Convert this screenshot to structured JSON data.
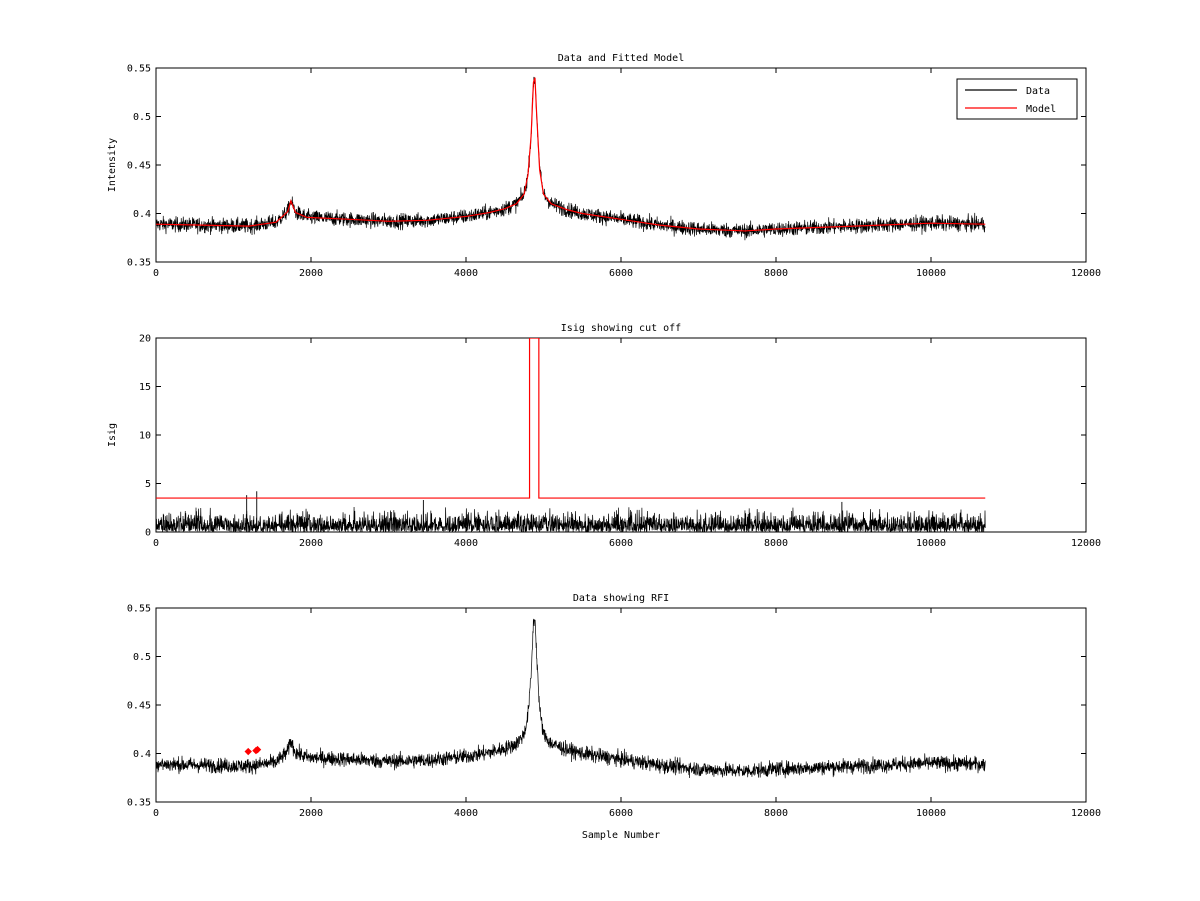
{
  "figure": {
    "background": "#ffffff"
  },
  "chart_data": [
    {
      "type": "line",
      "title": "Data and Fitted Model",
      "xlabel": "",
      "ylabel": "Intensity",
      "xlim": [
        0,
        12000
      ],
      "ylim": [
        0.35,
        0.55
      ],
      "xticks": [
        0,
        2000,
        4000,
        6000,
        8000,
        10000,
        12000
      ],
      "xtick_labels": [
        "0",
        "2000",
        "4000",
        "6000",
        "8000",
        "10000",
        "12000"
      ],
      "yticks": [
        0.35,
        0.4,
        0.45,
        0.5,
        0.55
      ],
      "ytick_labels": [
        "0.35",
        "0.4",
        "0.45",
        "0.5",
        "0.55"
      ],
      "grid": false,
      "legend": {
        "position": "top-right",
        "entries": [
          {
            "label": "Data",
            "color": "#000000"
          },
          {
            "label": "Model",
            "color": "#ff0000"
          }
        ]
      },
      "series": [
        {
          "name": "Data",
          "color": "#000000",
          "style": "noisy",
          "noise": 0.0055,
          "x": [
            0,
            600,
            1200,
            1550,
            1700,
            1740,
            1800,
            1950,
            2500,
            3000,
            3500,
            4000,
            4300,
            4500,
            4650,
            4750,
            4800,
            4840,
            4870,
            4890,
            4910,
            4950,
            5000,
            5100,
            5300,
            5500,
            6000,
            6500,
            7000,
            7600,
            8000,
            9000,
            10000,
            10700
          ],
          "y": [
            0.389,
            0.388,
            0.387,
            0.391,
            0.402,
            0.413,
            0.401,
            0.396,
            0.394,
            0.392,
            0.393,
            0.397,
            0.401,
            0.405,
            0.41,
            0.42,
            0.44,
            0.48,
            0.535,
            0.54,
            0.505,
            0.445,
            0.42,
            0.41,
            0.404,
            0.4,
            0.394,
            0.388,
            0.384,
            0.382,
            0.384,
            0.387,
            0.39,
            0.389
          ]
        },
        {
          "name": "Model",
          "color": "#ff0000",
          "style": "line",
          "x": [
            0,
            600,
            1200,
            1550,
            1700,
            1740,
            1800,
            1950,
            2500,
            3000,
            3500,
            4000,
            4300,
            4500,
            4650,
            4750,
            4800,
            4840,
            4870,
            4890,
            4910,
            4950,
            5000,
            5100,
            5300,
            5500,
            6000,
            6500,
            7000,
            7600,
            8000,
            9000,
            10000,
            10700
          ],
          "y": [
            0.389,
            0.388,
            0.387,
            0.391,
            0.402,
            0.413,
            0.401,
            0.396,
            0.394,
            0.392,
            0.393,
            0.397,
            0.401,
            0.405,
            0.41,
            0.42,
            0.44,
            0.48,
            0.535,
            0.54,
            0.505,
            0.445,
            0.42,
            0.41,
            0.404,
            0.4,
            0.394,
            0.388,
            0.384,
            0.382,
            0.384,
            0.387,
            0.39,
            0.389
          ]
        }
      ]
    },
    {
      "type": "line",
      "title": "Isig showing cut off",
      "xlabel": "",
      "ylabel": "Isig",
      "xlim": [
        0,
        12000
      ],
      "ylim": [
        0,
        20
      ],
      "xticks": [
        0,
        2000,
        4000,
        6000,
        8000,
        10000,
        12000
      ],
      "xtick_labels": [
        "0",
        "2000",
        "4000",
        "6000",
        "8000",
        "10000",
        "12000"
      ],
      "yticks": [
        0,
        5,
        10,
        15,
        20
      ],
      "ytick_labels": [
        "0",
        "5",
        "10",
        "15",
        "20"
      ],
      "grid": false,
      "series": [
        {
          "color": "#000000",
          "style": "spiky",
          "x": [
            0,
            10700
          ],
          "ymax": 4.2,
          "spikes": [
            {
              "x": 1300,
              "y": 4.2
            },
            {
              "x": 1170,
              "y": 3.8
            },
            {
              "x": 3450,
              "y": 3.3
            },
            {
              "x": 8850,
              "y": 3.1
            }
          ]
        },
        {
          "color": "#ff0000",
          "style": "line",
          "x": [
            0,
            4820,
            4820,
            4940,
            4940,
            10700
          ],
          "y": [
            3.5,
            3.5,
            20,
            20,
            3.5,
            3.5
          ]
        }
      ]
    },
    {
      "type": "line",
      "title": "Data showing RFI",
      "xlabel": "Sample Number",
      "ylabel": "",
      "xlim": [
        0,
        12000
      ],
      "ylim": [
        0.35,
        0.55
      ],
      "xticks": [
        0,
        2000,
        4000,
        6000,
        8000,
        10000,
        12000
      ],
      "xtick_labels": [
        "0",
        "2000",
        "4000",
        "6000",
        "8000",
        "10000",
        "12000"
      ],
      "yticks": [
        0.35,
        0.4,
        0.45,
        0.5,
        0.55
      ],
      "ytick_labels": [
        "0.35",
        "0.4",
        "0.45",
        "0.5",
        "0.55"
      ],
      "grid": false,
      "series": [
        {
          "color": "#000000",
          "style": "noisy",
          "noise": 0.0055,
          "x": [
            0,
            600,
            1200,
            1550,
            1700,
            1740,
            1800,
            1950,
            2500,
            3000,
            3500,
            4000,
            4300,
            4500,
            4650,
            4750,
            4800,
            4840,
            4870,
            4890,
            4910,
            4950,
            5000,
            5100,
            5300,
            5500,
            6000,
            6500,
            7000,
            7600,
            8000,
            9000,
            10000,
            10700
          ],
          "y": [
            0.389,
            0.388,
            0.387,
            0.391,
            0.402,
            0.413,
            0.401,
            0.396,
            0.394,
            0.392,
            0.393,
            0.397,
            0.401,
            0.405,
            0.41,
            0.42,
            0.44,
            0.48,
            0.535,
            0.54,
            0.505,
            0.445,
            0.42,
            0.41,
            0.404,
            0.4,
            0.394,
            0.388,
            0.384,
            0.382,
            0.384,
            0.387,
            0.39,
            0.389
          ]
        },
        {
          "color": "#ff0000",
          "style": "markers",
          "x": [
            1190,
            1290,
            1310
          ],
          "y": [
            0.402,
            0.403,
            0.404
          ]
        }
      ]
    }
  ]
}
